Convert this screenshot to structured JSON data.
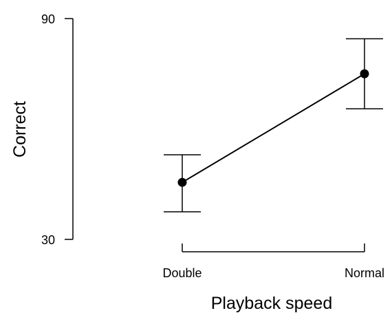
{
  "chart_data": {
    "type": "line",
    "xlabel": "Playback speed",
    "ylabel": "Correct",
    "categories": [
      "Double",
      "Normal"
    ],
    "ylim": [
      30,
      90
    ],
    "yticks": [
      30,
      90
    ],
    "grid": false,
    "legend": "none",
    "series": [
      {
        "values": [
          45.5,
          75
        ],
        "error_lower": [
          37.5,
          65.5
        ],
        "error_upper": [
          53,
          84.5
        ],
        "color": "#000000"
      }
    ]
  }
}
